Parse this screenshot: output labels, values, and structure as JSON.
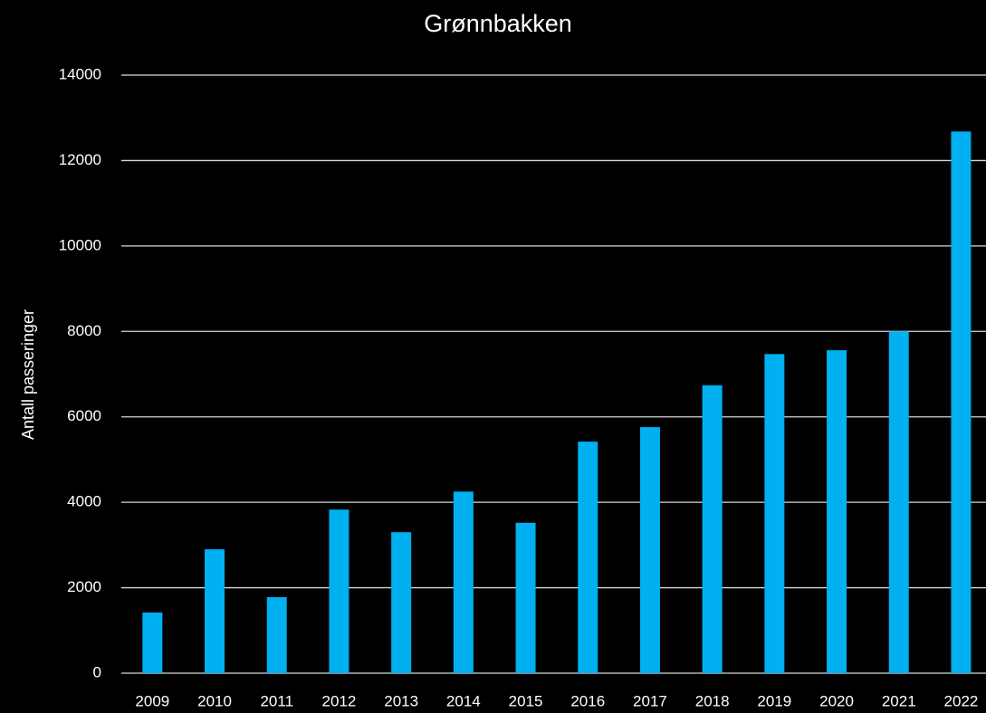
{
  "chart_data": {
    "type": "bar",
    "title": "Grønnbakken",
    "y_label": "Antall passeringer",
    "categories": [
      "2009",
      "2010",
      "2011",
      "2012",
      "2013",
      "2014",
      "2015",
      "2016",
      "2017",
      "2018",
      "2019",
      "2020",
      "2021",
      "2022"
    ],
    "values": [
      1420,
      2900,
      1780,
      3830,
      3300,
      4250,
      3520,
      5420,
      5760,
      6740,
      7470,
      7560,
      8000,
      12680
    ],
    "color": "#00b0f0",
    "ylim": [
      0,
      14000
    ],
    "yticks": [
      0,
      2000,
      4000,
      6000,
      8000,
      10000,
      12000,
      14000
    ],
    "grid": true
  }
}
